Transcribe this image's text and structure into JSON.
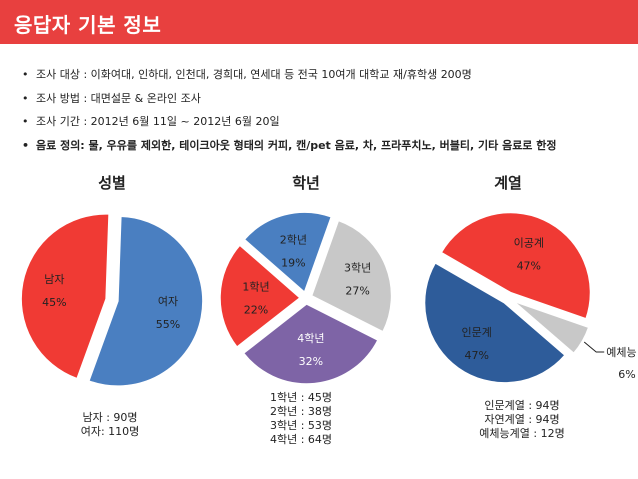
{
  "header": {
    "title": "응답자 기본 정보"
  },
  "bullets": [
    "조사 대상 : 이화여대, 인하대, 인천대, 경희대, 연세대 등 전국 10여개 대학교 재/휴학생 200명",
    "조사 방법 : 대면설문 & 온라인 조사",
    "조사 기간 : 2012년 6월 11일 ~ 2012년 6월 20일",
    "음료 정의: 물, 우유를 제외한, 테이크아웃 형태의 커피, 캔/pet 음료, 차, 프라푸치노, 버블티, 기타 음료로 한정"
  ],
  "bullet_marker": "•",
  "colors": {
    "red": "#f03a34",
    "blue": "#4a7fc1",
    "gray": "#c8c8c8",
    "purple": "#7e64a6",
    "darkblue": "#2e5c9a",
    "header": "#e8403f"
  },
  "chart_data": [
    {
      "type": "pie",
      "title": "성별",
      "slices": [
        {
          "label": "남자",
          "pct_label": "45%",
          "value": 45,
          "color": "#f03a34",
          "text_color": "#222222"
        },
        {
          "label": "여자",
          "pct_label": "55%",
          "value": 55,
          "color": "#4a7fc1",
          "text_color": "#222222"
        }
      ],
      "note": [
        "남자 : 90명",
        "여자: 110명"
      ]
    },
    {
      "type": "pie",
      "title": "학년",
      "slices": [
        {
          "label": "1학년",
          "pct_label": "22%",
          "value": 22,
          "color": "#f03a34",
          "text_color": "#222222"
        },
        {
          "label": "2학년",
          "pct_label": "19%",
          "value": 19,
          "color": "#4a7fc1",
          "text_color": "#222222"
        },
        {
          "label": "3학년",
          "pct_label": "27%",
          "value": 27,
          "color": "#c8c8c8",
          "text_color": "#222222"
        },
        {
          "label": "4학년",
          "pct_label": "32%",
          "value": 32,
          "color": "#7e64a6",
          "text_color": "#ffffff"
        }
      ],
      "note": [
        "1학년 : 45명",
        "2학년 : 38명",
        "3학년 : 53명",
        "4학년 : 64명"
      ]
    },
    {
      "type": "pie",
      "title": "계열",
      "slices": [
        {
          "label": "이공계",
          "pct_label": "47%",
          "value": 47,
          "color": "#f03a34",
          "text_color": "#222222"
        },
        {
          "label": "예체능",
          "pct_label": "6%",
          "value": 6,
          "color": "#c8c8c8",
          "text_color": "#222222"
        },
        {
          "label": "인문계",
          "pct_label": "47%",
          "value": 47,
          "color": "#2e5c9a",
          "text_color": "#222222"
        }
      ],
      "note": [
        "인문계열 : 94명",
        "자연계열 : 94명",
        "예체능계열 : 12명"
      ]
    }
  ]
}
